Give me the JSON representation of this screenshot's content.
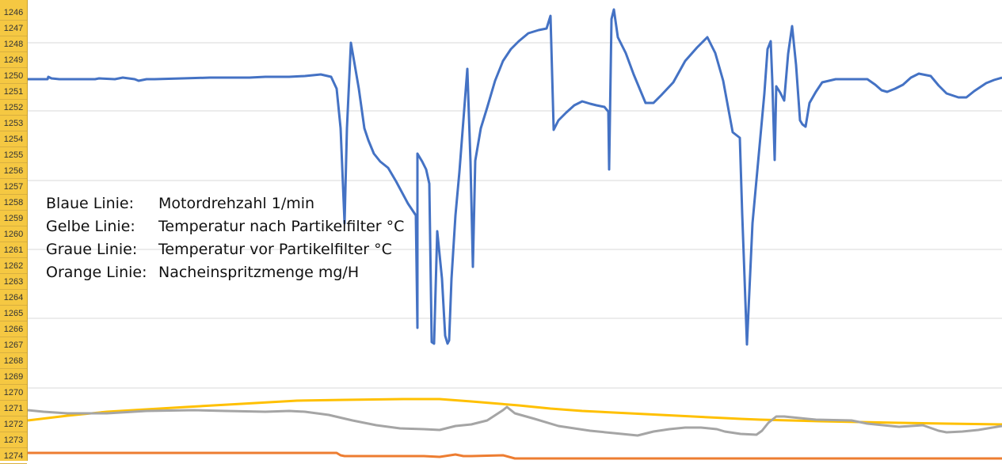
{
  "row_numbers": [
    "1246",
    "1247",
    "1248",
    "1249",
    "1250",
    "1251",
    "1252",
    "1253",
    "1254",
    "1255",
    "1256",
    "1257",
    "1258",
    "1259",
    "1260",
    "1261",
    "1262",
    "1263",
    "1264",
    "1265",
    "1266",
    "1267",
    "1268",
    "1269",
    "1270",
    "1271",
    "1272",
    "1273",
    "1274"
  ],
  "legend": [
    {
      "key": "Blaue Linie:",
      "value": "Motordrehzahl 1/min",
      "color": "#4472c4"
    },
    {
      "key": "Gelbe Linie:",
      "value": "Temperatur nach Partikelfilter °C",
      "color": "#ffc000"
    },
    {
      "key": "Graue Linie:",
      "value": "Temperatur vor Partikelfilter °C",
      "color": "#a5a5a5"
    },
    {
      "key": "Orange Linie:",
      "value": "Nacheinspritzmenge mg/H",
      "color": "#ed7d31"
    }
  ],
  "chart_data": {
    "type": "line",
    "title": "",
    "xlabel": "",
    "ylabel": "",
    "x_range": [
      0,
      1230
    ],
    "y_range": [
      0,
      582
    ],
    "grid": "horizontal",
    "series": [
      {
        "name": "Blaue Linie",
        "color": "#4472c4",
        "points": [
          [
            0,
            482
          ],
          [
            25,
            482
          ],
          [
            26,
            485
          ],
          [
            30,
            483
          ],
          [
            40,
            482
          ],
          [
            85,
            482
          ],
          [
            90,
            483
          ],
          [
            110,
            482
          ],
          [
            120,
            484
          ],
          [
            135,
            482
          ],
          [
            140,
            480
          ],
          [
            150,
            482
          ],
          [
            160,
            482
          ],
          [
            195,
            483
          ],
          [
            230,
            484
          ],
          [
            280,
            484
          ],
          [
            300,
            485
          ],
          [
            330,
            485
          ],
          [
            350,
            486
          ],
          [
            370,
            488
          ],
          [
            383,
            485
          ],
          [
            390,
            470
          ],
          [
            395,
            420
          ],
          [
            400,
            300
          ],
          [
            403,
            420
          ],
          [
            408,
            528
          ],
          [
            412,
            505
          ],
          [
            418,
            470
          ],
          [
            425,
            420
          ],
          [
            430,
            405
          ],
          [
            437,
            388
          ],
          [
            445,
            378
          ],
          [
            455,
            370
          ],
          [
            465,
            353
          ],
          [
            480,
            325
          ],
          [
            490,
            310
          ],
          [
            492,
            168
          ],
          [
            492,
            388
          ],
          [
            498,
            378
          ],
          [
            503,
            368
          ],
          [
            507,
            350
          ],
          [
            510,
            150
          ],
          [
            513,
            148
          ],
          [
            517,
            290
          ],
          [
            520,
            260
          ],
          [
            523,
            230
          ],
          [
            527,
            158
          ],
          [
            530,
            148
          ],
          [
            532,
            152
          ],
          [
            535,
            230
          ],
          [
            540,
            310
          ],
          [
            545,
            365
          ],
          [
            550,
            430
          ],
          [
            555,
            495
          ],
          [
            559,
            377
          ],
          [
            562,
            245
          ],
          [
            565,
            379
          ],
          [
            572,
            420
          ],
          [
            580,
            446
          ],
          [
            590,
            480
          ],
          [
            600,
            505
          ],
          [
            610,
            520
          ],
          [
            620,
            530
          ],
          [
            632,
            540
          ],
          [
            645,
            544
          ],
          [
            655,
            546
          ],
          [
            660,
            562
          ],
          [
            664,
            418
          ],
          [
            670,
            430
          ],
          [
            680,
            440
          ],
          [
            690,
            449
          ],
          [
            700,
            454
          ],
          [
            710,
            451
          ],
          [
            718,
            449
          ],
          [
            728,
            447
          ],
          [
            733,
            441
          ],
          [
            734,
            368
          ],
          [
            737,
            558
          ],
          [
            740,
            570
          ],
          [
            745,
            535
          ],
          [
            755,
            515
          ],
          [
            765,
            488
          ],
          [
            780,
            452
          ],
          [
            790,
            452
          ],
          [
            800,
            462
          ],
          [
            815,
            478
          ],
          [
            830,
            505
          ],
          [
            845,
            522
          ],
          [
            858,
            535
          ],
          [
            868,
            515
          ],
          [
            878,
            480
          ],
          [
            890,
            415
          ],
          [
            899,
            408
          ],
          [
            902,
            312
          ],
          [
            904,
            258
          ],
          [
            908,
            147
          ],
          [
            915,
            300
          ],
          [
            930,
            464
          ],
          [
            934,
            520
          ],
          [
            938,
            530
          ],
          [
            940,
            480
          ],
          [
            943,
            380
          ],
          [
            945,
            473
          ],
          [
            950,
            465
          ],
          [
            955,
            455
          ],
          [
            960,
            514
          ],
          [
            965,
            549
          ],
          [
            970,
            500
          ],
          [
            975,
            430
          ],
          [
            978,
            425
          ],
          [
            982,
            422
          ],
          [
            987,
            452
          ],
          [
            995,
            466
          ],
          [
            1003,
            478
          ],
          [
            1020,
            482
          ],
          [
            1060,
            482
          ],
          [
            1070,
            475
          ],
          [
            1078,
            468
          ],
          [
            1085,
            466
          ],
          [
            1095,
            470
          ],
          [
            1105,
            475
          ],
          [
            1115,
            484
          ],
          [
            1125,
            489
          ],
          [
            1140,
            486
          ],
          [
            1150,
            474
          ],
          [
            1160,
            464
          ],
          [
            1175,
            459
          ],
          [
            1185,
            459
          ],
          [
            1195,
            467
          ],
          [
            1210,
            477
          ],
          [
            1220,
            481
          ],
          [
            1230,
            484
          ]
        ]
      },
      {
        "name": "Gelbe Linie",
        "color": "#ffc000",
        "points": [
          [
            0,
            51
          ],
          [
            50,
            57
          ],
          [
            100,
            62
          ],
          [
            150,
            65
          ],
          [
            200,
            68
          ],
          [
            270,
            72
          ],
          [
            340,
            76
          ],
          [
            400,
            77
          ],
          [
            475,
            78
          ],
          [
            520,
            78
          ],
          [
            560,
            75
          ],
          [
            620,
            70
          ],
          [
            660,
            66
          ],
          [
            700,
            63
          ],
          [
            760,
            60
          ],
          [
            820,
            57
          ],
          [
            880,
            54
          ],
          [
            900,
            53
          ],
          [
            925,
            52
          ],
          [
            1000,
            50
          ],
          [
            1100,
            48
          ],
          [
            1160,
            47
          ],
          [
            1230,
            46
          ]
        ]
      },
      {
        "name": "Graue Linie",
        "color": "#a5a5a5",
        "points": [
          [
            0,
            64
          ],
          [
            20,
            62
          ],
          [
            50,
            60
          ],
          [
            100,
            60
          ],
          [
            150,
            63
          ],
          [
            210,
            64
          ],
          [
            250,
            63
          ],
          [
            300,
            62
          ],
          [
            330,
            63
          ],
          [
            350,
            62
          ],
          [
            380,
            58
          ],
          [
            410,
            51
          ],
          [
            440,
            45
          ],
          [
            470,
            41
          ],
          [
            500,
            40
          ],
          [
            520,
            39
          ],
          [
            540,
            44
          ],
          [
            560,
            46
          ],
          [
            580,
            51
          ],
          [
            600,
            64
          ],
          [
            605,
            68
          ],
          [
            615,
            60
          ],
          [
            640,
            53
          ],
          [
            670,
            44
          ],
          [
            710,
            38
          ],
          [
            750,
            34
          ],
          [
            770,
            32
          ],
          [
            790,
            37
          ],
          [
            810,
            40
          ],
          [
            830,
            42
          ],
          [
            850,
            42
          ],
          [
            870,
            40
          ],
          [
            880,
            37
          ],
          [
            900,
            34
          ],
          [
            920,
            33
          ],
          [
            927,
            38
          ],
          [
            935,
            48
          ],
          [
            945,
            56
          ],
          [
            955,
            56
          ],
          [
            975,
            54
          ],
          [
            995,
            52
          ],
          [
            1040,
            51
          ],
          [
            1060,
            47
          ],
          [
            1080,
            45
          ],
          [
            1100,
            43
          ],
          [
            1130,
            45
          ],
          [
            1150,
            38
          ],
          [
            1160,
            36
          ],
          [
            1180,
            37
          ],
          [
            1200,
            39
          ],
          [
            1230,
            44
          ]
        ]
      },
      {
        "name": "Orange Linie",
        "color": "#ed7d31",
        "points": [
          [
            0,
            10
          ],
          [
            390,
            10
          ],
          [
            395,
            7
          ],
          [
            400,
            6
          ],
          [
            500,
            6
          ],
          [
            520,
            5
          ],
          [
            540,
            8
          ],
          [
            550,
            6
          ],
          [
            560,
            6
          ],
          [
            600,
            7
          ],
          [
            615,
            3
          ],
          [
            1230,
            3
          ]
        ]
      }
    ]
  }
}
